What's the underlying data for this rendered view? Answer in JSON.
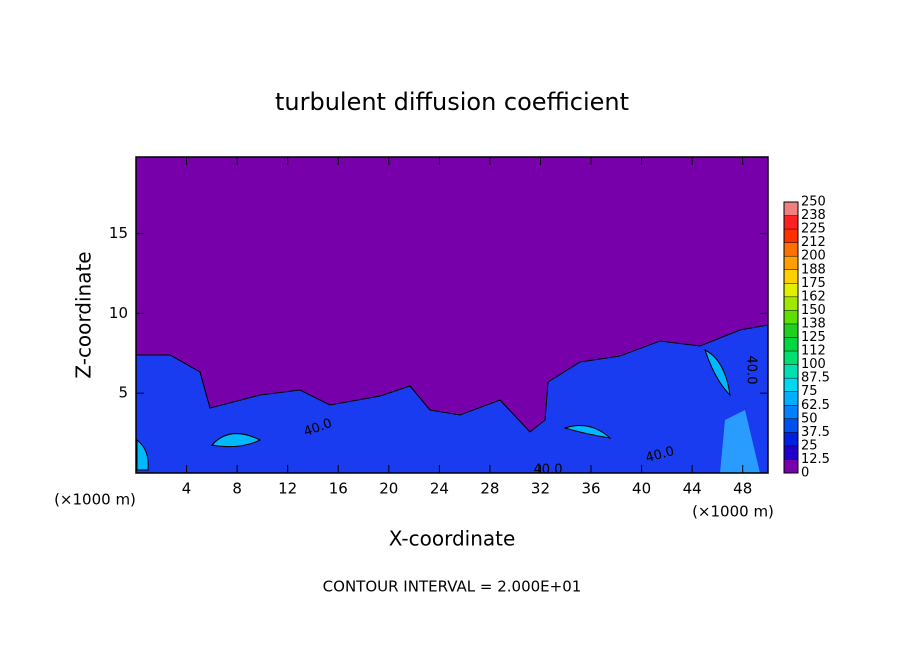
{
  "chart_data": {
    "type": "contour",
    "title": "turbulent diffusion coefficient",
    "x_label": "X-coordinate",
    "y_label": "Z-coordinate",
    "x_unit": "(×1000 m)",
    "y_unit": "(×1000 m)",
    "footer": "CONTOUR INTERVAL = 2.000E+01",
    "xlim": [
      0,
      50
    ],
    "xticks": [
      4,
      8,
      12,
      16,
      20,
      24,
      28,
      32,
      36,
      40,
      44,
      48
    ],
    "ylim": [
      0,
      19.8
    ],
    "yticks": [
      5,
      10,
      15
    ],
    "contour_labels": [
      "40.0",
      "40.0",
      "40.0",
      "40.0"
    ],
    "colorbar": {
      "ticks": [
        0,
        12.5,
        25,
        37.5,
        50,
        62.5,
        75,
        87.5,
        100,
        112,
        125,
        138,
        150,
        162,
        175,
        188,
        200,
        212,
        225,
        238,
        250
      ],
      "colors": [
        "#7800aa",
        "#2000c8",
        "#0020e0",
        "#0050f0",
        "#0080ff",
        "#00b0ff",
        "#00d8f0",
        "#00e0b0",
        "#00e070",
        "#00d840",
        "#20d020",
        "#60e000",
        "#a0e800",
        "#e0f000",
        "#ffd000",
        "#ffa000",
        "#ff7000",
        "#ff3000",
        "#ff2020",
        "#f08080"
      ]
    }
  }
}
